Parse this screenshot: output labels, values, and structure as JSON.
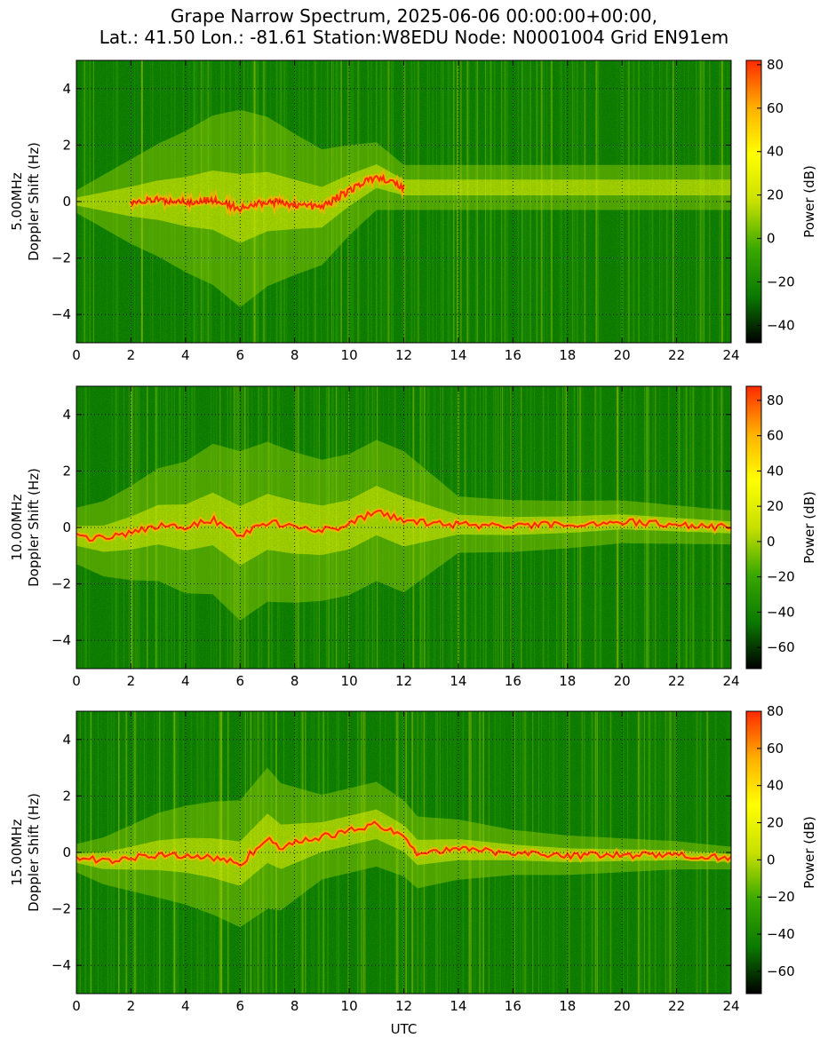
{
  "title_line1": "Grape Narrow Spectrum, 2025-06-06 00:00:00+00:00,",
  "title_line2": "Lat.: 41.50 Lon.: -81.61 Station:W8EDU Node: N0001004 Grid EN91em",
  "xlabel": "UTC",
  "colors": {
    "background": "#0b7a00",
    "colormap": [
      "#000000",
      "#0b7a00",
      "#3aa800",
      "#c8e000",
      "#ffff00",
      "#ffb000",
      "#ff2a00"
    ]
  },
  "chart_data": [
    {
      "type": "heatmap",
      "frequency_label": "5.00MHz",
      "ylabel": "Doppler Shift (Hz)",
      "colorbar_label": "Power (dB)",
      "xlim": [
        0,
        24
      ],
      "ylim": [
        -5,
        5
      ],
      "xticks": [
        0,
        2,
        4,
        6,
        8,
        10,
        12,
        14,
        16,
        18,
        20,
        22,
        24
      ],
      "yticks": [
        -4,
        -2,
        0,
        2,
        4
      ],
      "clim": [
        -48,
        82
      ],
      "cticks": [
        -40,
        -20,
        0,
        20,
        40,
        60,
        80
      ],
      "grid": true,
      "carrier_trace": [
        [
          2,
          0.0
        ],
        [
          3,
          0.05
        ],
        [
          4,
          0.0
        ],
        [
          5,
          0.05
        ],
        [
          6,
          -0.25
        ],
        [
          7,
          0.0
        ],
        [
          8,
          -0.1
        ],
        [
          9,
          -0.2
        ],
        [
          10,
          0.4
        ],
        [
          11,
          0.9
        ],
        [
          12,
          0.5
        ]
      ],
      "spread_hz": [
        [
          0,
          0.4
        ],
        [
          2,
          1.5
        ],
        [
          4,
          2.5
        ],
        [
          6,
          3.5
        ],
        [
          8,
          2.5
        ],
        [
          10,
          1.6
        ],
        [
          12,
          0.8
        ]
      ]
    },
    {
      "type": "heatmap",
      "frequency_label": "10.00MHz",
      "ylabel": "Doppler Shift (Hz)",
      "colorbar_label": "Power (dB)",
      "xlim": [
        0,
        24
      ],
      "ylim": [
        -5,
        5
      ],
      "xticks": [
        0,
        2,
        4,
        6,
        8,
        10,
        12,
        14,
        16,
        18,
        20,
        22,
        24
      ],
      "yticks": [
        -4,
        -2,
        0,
        2,
        4
      ],
      "clim": [
        -72,
        88
      ],
      "cticks": [
        -60,
        -40,
        -20,
        0,
        20,
        40,
        60,
        80
      ],
      "grid": true,
      "carrier_trace": [
        [
          0,
          -0.3
        ],
        [
          1,
          -0.4
        ],
        [
          2,
          -0.2
        ],
        [
          3,
          0.1
        ],
        [
          4,
          0.0
        ],
        [
          5,
          0.3
        ],
        [
          6,
          -0.3
        ],
        [
          7,
          0.2
        ],
        [
          8,
          0.0
        ],
        [
          9,
          -0.1
        ],
        [
          10,
          0.1
        ],
        [
          11,
          0.6
        ],
        [
          12,
          0.2
        ],
        [
          14,
          0.1
        ],
        [
          16,
          0.05
        ],
        [
          18,
          0.1
        ],
        [
          20,
          0.2
        ],
        [
          22,
          0.1
        ],
        [
          24,
          0.0
        ]
      ],
      "spread_hz": [
        [
          0,
          1.0
        ],
        [
          3,
          2.0
        ],
        [
          6,
          3.0
        ],
        [
          9,
          2.5
        ],
        [
          12,
          2.5
        ],
        [
          14,
          1.0
        ],
        [
          24,
          0.6
        ]
      ]
    },
    {
      "type": "heatmap",
      "frequency_label": "15.00MHz",
      "ylabel": "Doppler Shift (Hz)",
      "colorbar_label": "Power (dB)",
      "xlim": [
        0,
        24
      ],
      "ylim": [
        -5,
        5
      ],
      "xticks": [
        0,
        2,
        4,
        6,
        8,
        10,
        12,
        14,
        16,
        18,
        20,
        22,
        24
      ],
      "yticks": [
        -4,
        -2,
        0,
        2,
        4
      ],
      "clim": [
        -72,
        80
      ],
      "cticks": [
        -60,
        -40,
        -20,
        0,
        20,
        40,
        60,
        80
      ],
      "grid": true,
      "carrier_trace": [
        [
          0,
          -0.2
        ],
        [
          1,
          -0.3
        ],
        [
          2,
          -0.2
        ],
        [
          3,
          -0.1
        ],
        [
          4,
          -0.1
        ],
        [
          5,
          -0.2
        ],
        [
          6,
          -0.4
        ],
        [
          7,
          0.5
        ],
        [
          7.5,
          0.2
        ],
        [
          11,
          1.0
        ],
        [
          12,
          0.5
        ],
        [
          12.5,
          0.0
        ],
        [
          14,
          0.1
        ],
        [
          16,
          0.0
        ],
        [
          18,
          -0.1
        ],
        [
          20,
          -0.1
        ],
        [
          22,
          -0.1
        ],
        [
          24,
          -0.2
        ]
      ],
      "spread_hz": [
        [
          0,
          0.5
        ],
        [
          3,
          1.5
        ],
        [
          5,
          2.0
        ],
        [
          7,
          2.5
        ],
        [
          9,
          1.5
        ],
        [
          11,
          1.5
        ],
        [
          13,
          1.2
        ],
        [
          16,
          0.8
        ],
        [
          24,
          0.4
        ]
      ]
    }
  ]
}
